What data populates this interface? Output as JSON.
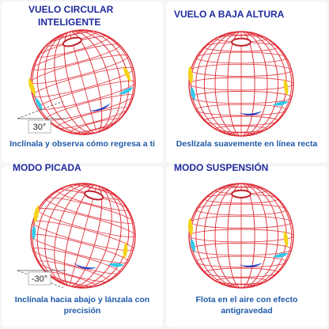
{
  "panels": [
    {
      "title": [
        "VUELO CIRCULAR",
        "INTELIGENTE"
      ],
      "caption": [
        "Inclínala y observa cómo regresa a ti"
      ],
      "angle_label": "30°"
    },
    {
      "title": [
        "VUELO A BAJA ALTURA"
      ],
      "caption": [
        "Deslízala suavemente en línea recta"
      ]
    },
    {
      "title": [
        "MODO PICADA"
      ],
      "caption": [
        "Inclínala hacia abajo y lánzala con",
        "precisión"
      ],
      "angle_label": "-30°"
    },
    {
      "title": [
        "MODO SUSPENSIÓN"
      ],
      "caption": [
        "Flota en el aire con efecto",
        "antigravedad"
      ]
    }
  ]
}
